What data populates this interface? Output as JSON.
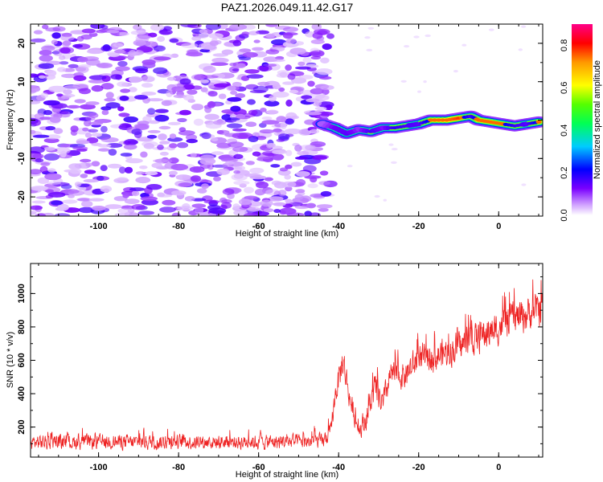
{
  "title": "PAZ1.2026.049.11.42.G17",
  "chart_data": [
    {
      "type": "heatmap",
      "xlabel": "Height of straight line (km)",
      "ylabel": "Frequency (Hz)",
      "xlim": [
        -117,
        11
      ],
      "ylim": [
        -25,
        25
      ],
      "xticks": [
        -100,
        -80,
        -60,
        -40,
        -20,
        0
      ],
      "yticks": [
        -20,
        -10,
        0,
        10,
        20
      ],
      "xtick_labels": [
        "-100",
        "-80",
        "-60",
        "-40",
        "-20",
        "0"
      ],
      "ytick_labels": [
        "-20",
        "-10",
        "0",
        "10",
        "20"
      ],
      "noise_region_x": [
        -117,
        -42
      ],
      "noise_amplitude_range": [
        0.0,
        0.15
      ],
      "signal_ridge": [
        {
          "x": -44,
          "y": -1,
          "amp": 0.28
        },
        {
          "x": -41,
          "y": -2,
          "amp": 0.45
        },
        {
          "x": -38,
          "y": -3.5,
          "amp": 0.5
        },
        {
          "x": -35,
          "y": -2.5,
          "amp": 0.35
        },
        {
          "x": -32,
          "y": -3,
          "amp": 0.55
        },
        {
          "x": -29,
          "y": -2,
          "amp": 0.4
        },
        {
          "x": -26,
          "y": -2,
          "amp": 0.62
        },
        {
          "x": -23,
          "y": -1.5,
          "amp": 0.55
        },
        {
          "x": -20,
          "y": -1,
          "amp": 0.5
        },
        {
          "x": -17,
          "y": 0,
          "amp": 0.8
        },
        {
          "x": -13,
          "y": 0,
          "amp": 0.85
        },
        {
          "x": -10,
          "y": 0.5,
          "amp": 0.9
        },
        {
          "x": -7,
          "y": 1,
          "amp": 0.55
        },
        {
          "x": -5,
          "y": 0,
          "amp": 0.82
        },
        {
          "x": -2,
          "y": -0.5,
          "amp": 0.8
        },
        {
          "x": 1,
          "y": -1,
          "amp": 0.75
        },
        {
          "x": 4,
          "y": -1.5,
          "amp": 0.6
        },
        {
          "x": 7,
          "y": -1,
          "amp": 0.5
        },
        {
          "x": 10,
          "y": -0.5,
          "amp": 0.8
        }
      ]
    },
    {
      "type": "colorbar",
      "label": "Normalized spectral amplitude",
      "range": [
        0.0,
        0.9
      ],
      "ticks": [
        0.0,
        0.2,
        0.4,
        0.6,
        0.8
      ],
      "tick_labels": [
        "0.0",
        "0.2",
        "0.4",
        "0.6",
        "0.8"
      ],
      "colors": [
        "#ffffff",
        "#cc99ff",
        "#6600ff",
        "#0000ff",
        "#00ccff",
        "#00ff66",
        "#66ff00",
        "#ffff00",
        "#ff9900",
        "#ff0000",
        "#ff0088"
      ]
    },
    {
      "type": "line",
      "xlabel": "Height of straight line (km)",
      "ylabel": "SNR (10 * v/v)",
      "xlim": [
        -117,
        11
      ],
      "ylim": [
        20,
        1180
      ],
      "xticks": [
        -100,
        -80,
        -60,
        -40,
        -20,
        0
      ],
      "yticks": [
        200,
        400,
        600,
        800,
        1000
      ],
      "xtick_labels": [
        "-100",
        "-80",
        "-60",
        "-40",
        "-20",
        "0"
      ],
      "ytick_labels": [
        "200",
        "400",
        "600",
        "800",
        "1000"
      ],
      "series_color": "#ee2222",
      "envelope": [
        {
          "x": -117,
          "mean": 110,
          "spread": 110
        },
        {
          "x": -60,
          "mean": 110,
          "spread": 110
        },
        {
          "x": -44,
          "mean": 115,
          "spread": 110
        },
        {
          "x": -42,
          "mean": 170,
          "spread": 120
        },
        {
          "x": -41,
          "mean": 380,
          "spread": 180
        },
        {
          "x": -39,
          "mean": 600,
          "spread": 250
        },
        {
          "x": -37,
          "mean": 340,
          "spread": 180
        },
        {
          "x": -35,
          "mean": 180,
          "spread": 120
        },
        {
          "x": -33,
          "mean": 260,
          "spread": 200
        },
        {
          "x": -31,
          "mean": 430,
          "spread": 230
        },
        {
          "x": -29,
          "mean": 330,
          "spread": 200
        },
        {
          "x": -27,
          "mean": 520,
          "spread": 210
        },
        {
          "x": -24,
          "mean": 500,
          "spread": 200
        },
        {
          "x": -20,
          "mean": 600,
          "spread": 230
        },
        {
          "x": -15,
          "mean": 630,
          "spread": 230
        },
        {
          "x": -10,
          "mean": 680,
          "spread": 240
        },
        {
          "x": -5,
          "mean": 740,
          "spread": 240
        },
        {
          "x": 0,
          "mean": 800,
          "spread": 250
        },
        {
          "x": 5,
          "mean": 860,
          "spread": 260
        },
        {
          "x": 11,
          "mean": 920,
          "spread": 260
        }
      ]
    }
  ]
}
